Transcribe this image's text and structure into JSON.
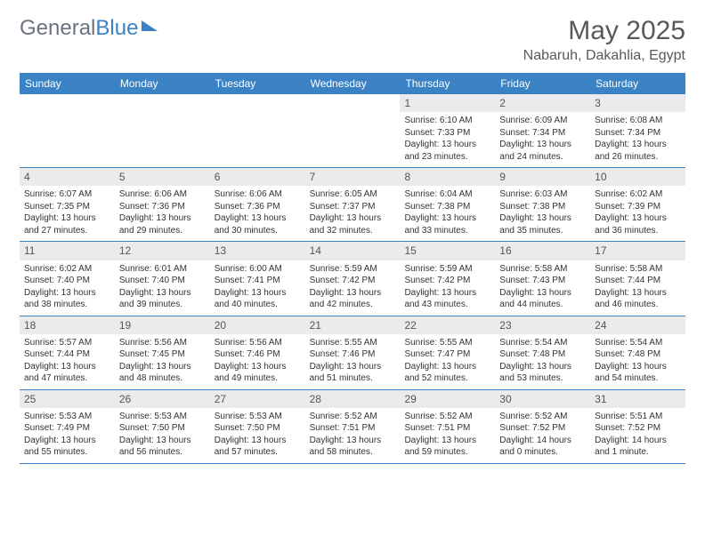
{
  "brand": {
    "part1": "General",
    "part2": "Blue"
  },
  "title": "May 2025",
  "location": "Nabaruh, Dakahlia, Egypt",
  "colors": {
    "header_bg": "#3b82c4",
    "header_text": "#ffffff",
    "daynum_bg": "#ebebeb",
    "text": "#333333",
    "title_text": "#595959",
    "row_border": "#3b82c4"
  },
  "layout": {
    "columns": 7,
    "rows": 5,
    "cell_fontsize": 10,
    "header_fontsize": 12,
    "title_fontsize": 30
  },
  "day_headers": [
    "Sunday",
    "Monday",
    "Tuesday",
    "Wednesday",
    "Thursday",
    "Friday",
    "Saturday"
  ],
  "weeks": [
    [
      {
        "day": "",
        "sunrise": "",
        "sunset": "",
        "daylight": ""
      },
      {
        "day": "",
        "sunrise": "",
        "sunset": "",
        "daylight": ""
      },
      {
        "day": "",
        "sunrise": "",
        "sunset": "",
        "daylight": ""
      },
      {
        "day": "",
        "sunrise": "",
        "sunset": "",
        "daylight": ""
      },
      {
        "day": "1",
        "sunrise": "Sunrise: 6:10 AM",
        "sunset": "Sunset: 7:33 PM",
        "daylight": "Daylight: 13 hours and 23 minutes."
      },
      {
        "day": "2",
        "sunrise": "Sunrise: 6:09 AM",
        "sunset": "Sunset: 7:34 PM",
        "daylight": "Daylight: 13 hours and 24 minutes."
      },
      {
        "day": "3",
        "sunrise": "Sunrise: 6:08 AM",
        "sunset": "Sunset: 7:34 PM",
        "daylight": "Daylight: 13 hours and 26 minutes."
      }
    ],
    [
      {
        "day": "4",
        "sunrise": "Sunrise: 6:07 AM",
        "sunset": "Sunset: 7:35 PM",
        "daylight": "Daylight: 13 hours and 27 minutes."
      },
      {
        "day": "5",
        "sunrise": "Sunrise: 6:06 AM",
        "sunset": "Sunset: 7:36 PM",
        "daylight": "Daylight: 13 hours and 29 minutes."
      },
      {
        "day": "6",
        "sunrise": "Sunrise: 6:06 AM",
        "sunset": "Sunset: 7:36 PM",
        "daylight": "Daylight: 13 hours and 30 minutes."
      },
      {
        "day": "7",
        "sunrise": "Sunrise: 6:05 AM",
        "sunset": "Sunset: 7:37 PM",
        "daylight": "Daylight: 13 hours and 32 minutes."
      },
      {
        "day": "8",
        "sunrise": "Sunrise: 6:04 AM",
        "sunset": "Sunset: 7:38 PM",
        "daylight": "Daylight: 13 hours and 33 minutes."
      },
      {
        "day": "9",
        "sunrise": "Sunrise: 6:03 AM",
        "sunset": "Sunset: 7:38 PM",
        "daylight": "Daylight: 13 hours and 35 minutes."
      },
      {
        "day": "10",
        "sunrise": "Sunrise: 6:02 AM",
        "sunset": "Sunset: 7:39 PM",
        "daylight": "Daylight: 13 hours and 36 minutes."
      }
    ],
    [
      {
        "day": "11",
        "sunrise": "Sunrise: 6:02 AM",
        "sunset": "Sunset: 7:40 PM",
        "daylight": "Daylight: 13 hours and 38 minutes."
      },
      {
        "day": "12",
        "sunrise": "Sunrise: 6:01 AM",
        "sunset": "Sunset: 7:40 PM",
        "daylight": "Daylight: 13 hours and 39 minutes."
      },
      {
        "day": "13",
        "sunrise": "Sunrise: 6:00 AM",
        "sunset": "Sunset: 7:41 PM",
        "daylight": "Daylight: 13 hours and 40 minutes."
      },
      {
        "day": "14",
        "sunrise": "Sunrise: 5:59 AM",
        "sunset": "Sunset: 7:42 PM",
        "daylight": "Daylight: 13 hours and 42 minutes."
      },
      {
        "day": "15",
        "sunrise": "Sunrise: 5:59 AM",
        "sunset": "Sunset: 7:42 PM",
        "daylight": "Daylight: 13 hours and 43 minutes."
      },
      {
        "day": "16",
        "sunrise": "Sunrise: 5:58 AM",
        "sunset": "Sunset: 7:43 PM",
        "daylight": "Daylight: 13 hours and 44 minutes."
      },
      {
        "day": "17",
        "sunrise": "Sunrise: 5:58 AM",
        "sunset": "Sunset: 7:44 PM",
        "daylight": "Daylight: 13 hours and 46 minutes."
      }
    ],
    [
      {
        "day": "18",
        "sunrise": "Sunrise: 5:57 AM",
        "sunset": "Sunset: 7:44 PM",
        "daylight": "Daylight: 13 hours and 47 minutes."
      },
      {
        "day": "19",
        "sunrise": "Sunrise: 5:56 AM",
        "sunset": "Sunset: 7:45 PM",
        "daylight": "Daylight: 13 hours and 48 minutes."
      },
      {
        "day": "20",
        "sunrise": "Sunrise: 5:56 AM",
        "sunset": "Sunset: 7:46 PM",
        "daylight": "Daylight: 13 hours and 49 minutes."
      },
      {
        "day": "21",
        "sunrise": "Sunrise: 5:55 AM",
        "sunset": "Sunset: 7:46 PM",
        "daylight": "Daylight: 13 hours and 51 minutes."
      },
      {
        "day": "22",
        "sunrise": "Sunrise: 5:55 AM",
        "sunset": "Sunset: 7:47 PM",
        "daylight": "Daylight: 13 hours and 52 minutes."
      },
      {
        "day": "23",
        "sunrise": "Sunrise: 5:54 AM",
        "sunset": "Sunset: 7:48 PM",
        "daylight": "Daylight: 13 hours and 53 minutes."
      },
      {
        "day": "24",
        "sunrise": "Sunrise: 5:54 AM",
        "sunset": "Sunset: 7:48 PM",
        "daylight": "Daylight: 13 hours and 54 minutes."
      }
    ],
    [
      {
        "day": "25",
        "sunrise": "Sunrise: 5:53 AM",
        "sunset": "Sunset: 7:49 PM",
        "daylight": "Daylight: 13 hours and 55 minutes."
      },
      {
        "day": "26",
        "sunrise": "Sunrise: 5:53 AM",
        "sunset": "Sunset: 7:50 PM",
        "daylight": "Daylight: 13 hours and 56 minutes."
      },
      {
        "day": "27",
        "sunrise": "Sunrise: 5:53 AM",
        "sunset": "Sunset: 7:50 PM",
        "daylight": "Daylight: 13 hours and 57 minutes."
      },
      {
        "day": "28",
        "sunrise": "Sunrise: 5:52 AM",
        "sunset": "Sunset: 7:51 PM",
        "daylight": "Daylight: 13 hours and 58 minutes."
      },
      {
        "day": "29",
        "sunrise": "Sunrise: 5:52 AM",
        "sunset": "Sunset: 7:51 PM",
        "daylight": "Daylight: 13 hours and 59 minutes."
      },
      {
        "day": "30",
        "sunrise": "Sunrise: 5:52 AM",
        "sunset": "Sunset: 7:52 PM",
        "daylight": "Daylight: 14 hours and 0 minutes."
      },
      {
        "day": "31",
        "sunrise": "Sunrise: 5:51 AM",
        "sunset": "Sunset: 7:52 PM",
        "daylight": "Daylight: 14 hours and 1 minute."
      }
    ]
  ]
}
